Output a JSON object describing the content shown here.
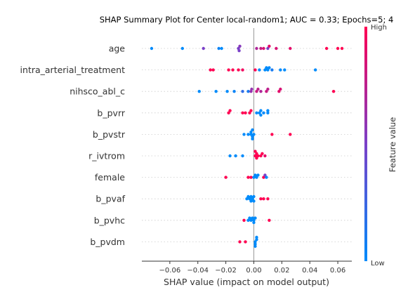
{
  "chart_data": {
    "type": "scatter",
    "title": "SHAP Summary Plot for Center local-random1; AUC = 0.33; Epochs=5; 4",
    "xlabel": "SHAP value (impact on model output)",
    "xlim": [
      -0.08,
      0.07
    ],
    "xticks": [
      -0.06,
      -0.04,
      -0.02,
      0.0,
      0.02,
      0.04,
      0.06
    ],
    "xtick_labels": [
      "−0.06",
      "−0.04",
      "−0.02",
      "0.00",
      "0.02",
      "0.04",
      "0.06"
    ],
    "colorbar": {
      "label": "Feature value",
      "high": "High",
      "low": "Low",
      "low_color": "#008bfb",
      "high_color": "#ff0052"
    },
    "features": [
      {
        "name": "age",
        "points": [
          {
            "x": -0.073,
            "f": 0.0
          },
          {
            "x": -0.051,
            "f": 0.0
          },
          {
            "x": -0.036,
            "f": 0.5
          },
          {
            "x": -0.025,
            "f": 0.05
          },
          {
            "x": -0.023,
            "f": 0.0
          },
          {
            "x": -0.011,
            "f": 0.5
          },
          {
            "x": -0.01,
            "f": 0.55
          },
          {
            "x": -0.0105,
            "f": 0.5
          },
          {
            "x": 0.002,
            "f": 0.7
          },
          {
            "x": 0.005,
            "f": 0.8
          },
          {
            "x": 0.007,
            "f": 0.85
          },
          {
            "x": 0.01,
            "f": 0.5
          },
          {
            "x": 0.011,
            "f": 0.9
          },
          {
            "x": 0.016,
            "f": 0.85
          },
          {
            "x": 0.026,
            "f": 0.9
          },
          {
            "x": 0.052,
            "f": 1.0
          },
          {
            "x": 0.06,
            "f": 1.0
          },
          {
            "x": 0.063,
            "f": 1.0
          }
        ]
      },
      {
        "name": "intra_arterial_treatment",
        "points": [
          {
            "x": -0.031,
            "f": 1.0
          },
          {
            "x": -0.029,
            "f": 1.0
          },
          {
            "x": -0.018,
            "f": 1.0
          },
          {
            "x": -0.015,
            "f": 1.0
          },
          {
            "x": -0.011,
            "f": 1.0
          },
          {
            "x": -0.008,
            "f": 0.95
          },
          {
            "x": 0.001,
            "f": 1.0
          },
          {
            "x": 0.004,
            "f": 0.0
          },
          {
            "x": 0.008,
            "f": 0.0
          },
          {
            "x": 0.009,
            "f": 0.0
          },
          {
            "x": 0.01,
            "f": 0.0
          },
          {
            "x": 0.011,
            "f": 0.0
          },
          {
            "x": 0.013,
            "f": 0.1
          },
          {
            "x": 0.019,
            "f": 0.0
          },
          {
            "x": 0.022,
            "f": 0.0
          },
          {
            "x": 0.044,
            "f": 0.0
          }
        ]
      },
      {
        "name": "nihsco_abl_c",
        "points": [
          {
            "x": -0.039,
            "f": 0.0
          },
          {
            "x": -0.027,
            "f": 0.0
          },
          {
            "x": -0.019,
            "f": 0.0
          },
          {
            "x": -0.014,
            "f": 0.05
          },
          {
            "x": -0.008,
            "f": 0.2
          },
          {
            "x": -0.004,
            "f": 0.1
          },
          {
            "x": -0.002,
            "f": 0.6
          },
          {
            "x": -0.0015,
            "f": 0.6
          },
          {
            "x": 0.002,
            "f": 0.8
          },
          {
            "x": 0.003,
            "f": 0.75
          },
          {
            "x": 0.005,
            "f": 0.7
          },
          {
            "x": 0.009,
            "f": 0.8
          },
          {
            "x": 0.01,
            "f": 0.75
          },
          {
            "x": 0.018,
            "f": 0.9
          },
          {
            "x": 0.019,
            "f": 0.85
          },
          {
            "x": 0.057,
            "f": 1.0
          }
        ]
      },
      {
        "name": "b_pvrr",
        "points": [
          {
            "x": -0.018,
            "f": 1.0
          },
          {
            "x": -0.017,
            "f": 1.0
          },
          {
            "x": -0.008,
            "f": 1.0
          },
          {
            "x": -0.006,
            "f": 1.0
          },
          {
            "x": -0.003,
            "f": 1.0
          },
          {
            "x": -0.002,
            "f": 1.0
          },
          {
            "x": 0.002,
            "f": 0.0
          },
          {
            "x": 0.004,
            "f": 0.0
          },
          {
            "x": 0.005,
            "f": 0.0
          },
          {
            "x": 0.005,
            "f": 0.0
          },
          {
            "x": 0.007,
            "f": 0.0
          },
          {
            "x": 0.01,
            "f": 0.0
          },
          {
            "x": 0.01,
            "f": 0.0
          }
        ]
      },
      {
        "name": "b_pvstr",
        "points": [
          {
            "x": -0.007,
            "f": 0.0
          },
          {
            "x": -0.004,
            "f": 0.0
          },
          {
            "x": -0.002,
            "f": 0.0
          },
          {
            "x": -0.002,
            "f": 0.0
          },
          {
            "x": -0.001,
            "f": 0.0
          },
          {
            "x": 0.0,
            "f": 0.0
          },
          {
            "x": -0.001,
            "f": 0.0
          },
          {
            "x": -0.001,
            "f": 0.0
          },
          {
            "x": 0.013,
            "f": 1.0
          },
          {
            "x": 0.026,
            "f": 1.0
          }
        ]
      },
      {
        "name": "r_ivtrom",
        "points": [
          {
            "x": -0.017,
            "f": 0.0
          },
          {
            "x": -0.013,
            "f": 0.0
          },
          {
            "x": -0.008,
            "f": 0.0
          },
          {
            "x": 0.001,
            "f": 1.0
          },
          {
            "x": 0.002,
            "f": 1.0
          },
          {
            "x": 0.003,
            "f": 1.0
          },
          {
            "x": 0.005,
            "f": 1.0
          },
          {
            "x": 0.006,
            "f": 1.0
          },
          {
            "x": 0.008,
            "f": 0.9
          },
          {
            "x": 0.002,
            "f": 1.0
          },
          {
            "x": 0.001,
            "f": 1.0
          }
        ]
      },
      {
        "name": "female",
        "points": [
          {
            "x": -0.02,
            "f": 1.0
          },
          {
            "x": -0.004,
            "f": 1.0
          },
          {
            "x": -0.002,
            "f": 1.0
          },
          {
            "x": 0.0,
            "f": 0.0
          },
          {
            "x": 0.001,
            "f": 0.0
          },
          {
            "x": 0.002,
            "f": 0.0
          },
          {
            "x": 0.003,
            "f": 0.0
          },
          {
            "x": 0.007,
            "f": 1.0
          },
          {
            "x": 0.008,
            "f": 0.5
          },
          {
            "x": 0.009,
            "f": 0.0
          }
        ]
      },
      {
        "name": "b_pvaf",
        "points": [
          {
            "x": -0.005,
            "f": 0.0
          },
          {
            "x": -0.004,
            "f": 0.0
          },
          {
            "x": -0.003,
            "f": 0.0
          },
          {
            "x": -0.002,
            "f": 0.0
          },
          {
            "x": -0.002,
            "f": 0.0
          },
          {
            "x": -0.001,
            "f": 0.0
          },
          {
            "x": 0.0,
            "f": 0.0
          },
          {
            "x": 0.0,
            "f": 0.0
          },
          {
            "x": 0.005,
            "f": 1.0
          },
          {
            "x": 0.007,
            "f": 1.0
          },
          {
            "x": 0.01,
            "f": 1.0
          }
        ]
      },
      {
        "name": "b_pvhc",
        "points": [
          {
            "x": -0.007,
            "f": 1.0
          },
          {
            "x": -0.004,
            "f": 0.0
          },
          {
            "x": -0.003,
            "f": 0.0
          },
          {
            "x": -0.002,
            "f": 0.0
          },
          {
            "x": -0.001,
            "f": 0.0
          },
          {
            "x": 0.0,
            "f": 0.0
          },
          {
            "x": 0.001,
            "f": 0.0
          },
          {
            "x": 0.0,
            "f": 0.0
          },
          {
            "x": 0.011,
            "f": 1.0
          }
        ]
      },
      {
        "name": "b_pvdm",
        "points": [
          {
            "x": -0.01,
            "f": 1.0
          },
          {
            "x": -0.006,
            "f": 1.0
          },
          {
            "x": 0.001,
            "f": 0.0
          },
          {
            "x": 0.002,
            "f": 0.0
          },
          {
            "x": 0.001,
            "f": 0.0
          },
          {
            "x": 0.002,
            "f": 0.0
          },
          {
            "x": 0.001,
            "f": 0.0
          }
        ]
      }
    ]
  }
}
